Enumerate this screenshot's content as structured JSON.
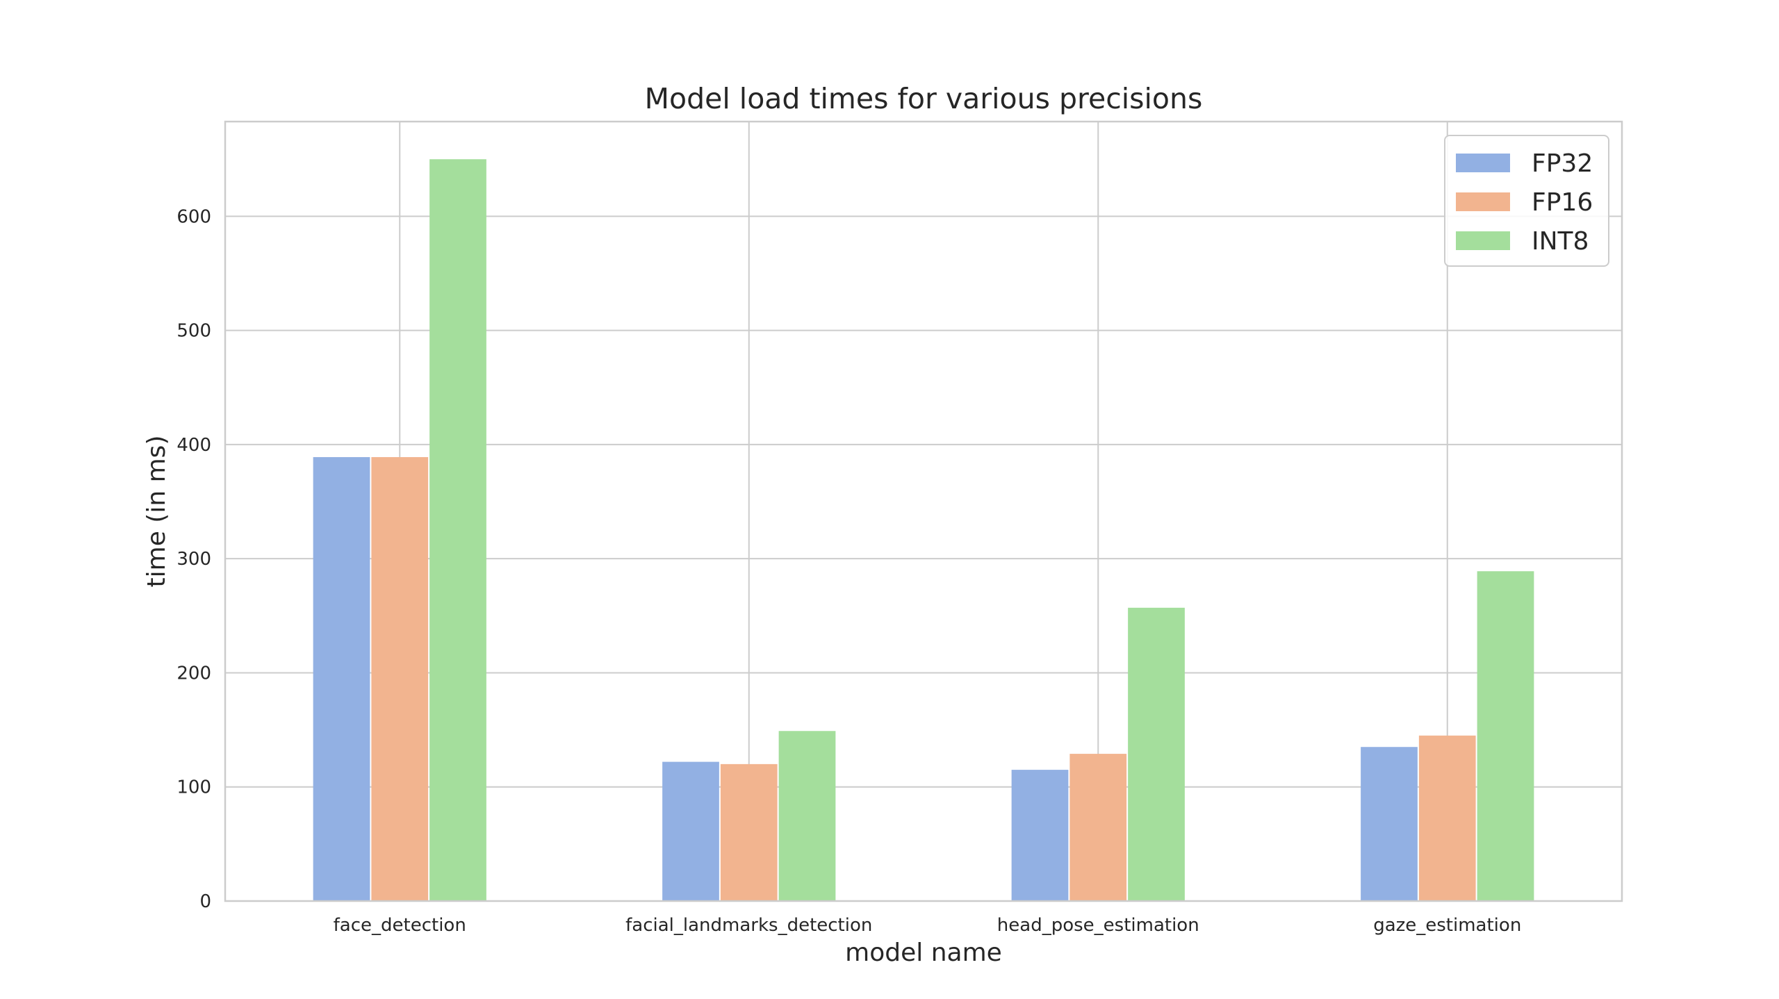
{
  "chart_data": {
    "type": "bar",
    "title": "Model load times for various precisions",
    "xlabel": "model name",
    "ylabel": "time (in ms)",
    "categories": [
      "face_detection",
      "facial_landmarks_detection",
      "head_pose_estimation",
      "gaze_estimation"
    ],
    "series": [
      {
        "name": "FP32",
        "color": "#92b0e3",
        "values": [
          389,
          122,
          115,
          135
        ]
      },
      {
        "name": "FP16",
        "color": "#f2b48f",
        "values": [
          389,
          120,
          129,
          145
        ]
      },
      {
        "name": "INT8",
        "color": "#a4de9c",
        "values": [
          650,
          149,
          257,
          289
        ]
      }
    ],
    "ylim": [
      0,
      683
    ],
    "yticks": [
      0,
      100,
      200,
      300,
      400,
      500,
      600
    ],
    "grid": true,
    "legend_position": "top-right"
  }
}
